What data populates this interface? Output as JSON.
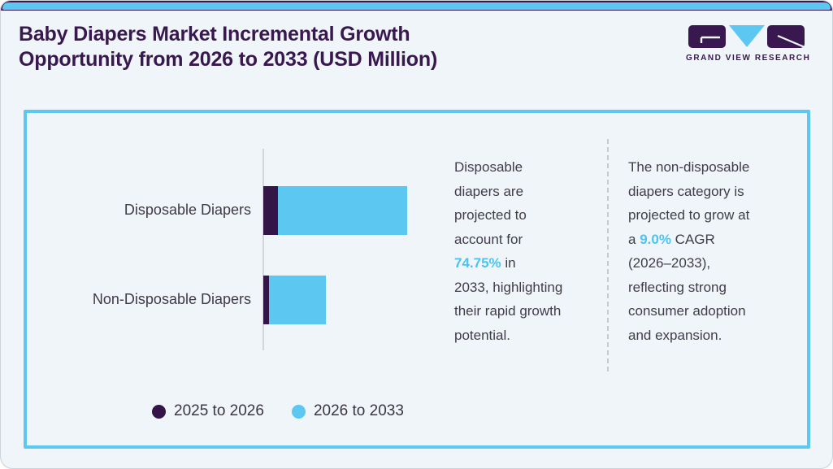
{
  "header": {
    "title_line1": "Baby Diapers Market Incremental Growth",
    "title_line2": "Opportunity from 2026 to 2033 (USD Million)",
    "brand": "GRAND VIEW RESEARCH"
  },
  "colors": {
    "accent_blue": "#5cc8f2",
    "dark_purple": "#331548",
    "title_purple": "#38184e",
    "panel_border_blue": "#5cc8f2",
    "body_text": "#413c4b",
    "highlight_blue": "#4cc3f0"
  },
  "chart_data": {
    "type": "bar",
    "orientation": "horizontal",
    "stacked": true,
    "title": "Baby Diapers Market Incremental Growth Opportunity from 2026 to 2033 (USD Million)",
    "categories": [
      "Disposable Diapers",
      "Non-Disposable Diapers"
    ],
    "series": [
      {
        "name": "2025 to 2026",
        "color": "#331548",
        "values": [
          18,
          7
        ]
      },
      {
        "name": "2026 to 2033",
        "color": "#5cc8f2",
        "values": [
          159,
          70
        ]
      }
    ],
    "value_axis_labels_shown": false,
    "units": "relative bar length (no numeric axis shown)",
    "legend_position": "bottom"
  },
  "annotations": {
    "left": {
      "before": "Disposable\ndiapers are\nprojected to\naccount for\n",
      "highlight": "74.75%",
      "after": " in\n2033, highlighting\ntheir rapid growth\npotential."
    },
    "right": {
      "before": "The non-disposable\ndiapers category is\nprojected to grow at\na ",
      "highlight": "9.0%",
      "after": " CAGR\n(2026–2033),\nreflecting strong\nconsumer adoption\nand expansion."
    }
  },
  "legend": {
    "items": [
      {
        "label": "2025 to 2026",
        "color": "#331548"
      },
      {
        "label": "2026 to 2033",
        "color": "#5cc8f2"
      }
    ]
  }
}
